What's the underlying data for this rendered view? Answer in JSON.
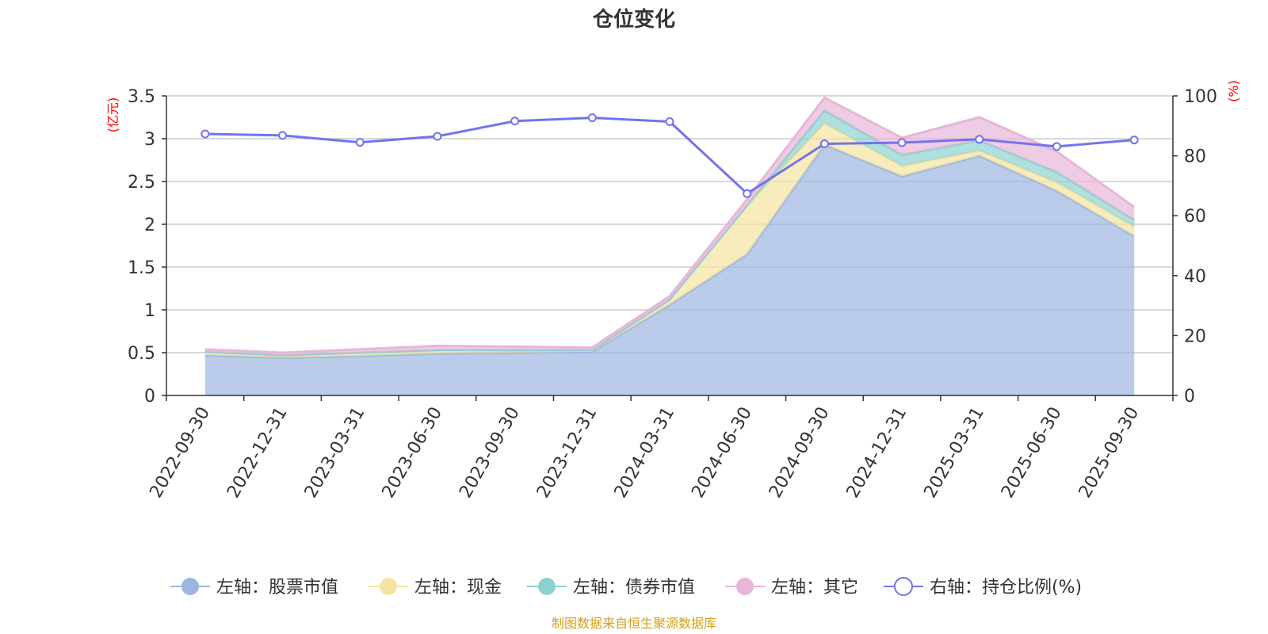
{
  "chart_data": {
    "type": "area",
    "title": "仓位变化",
    "categories": [
      "2022-09-30",
      "2022-12-31",
      "2023-03-31",
      "2023-06-30",
      "2023-09-30",
      "2023-12-31",
      "2024-03-31",
      "2024-06-30",
      "2024-09-30",
      "2024-12-31",
      "2025-03-31",
      "2025-06-30",
      "2025-09-30"
    ],
    "left_axis": {
      "unit": "(亿元)",
      "min": 0,
      "max": 3.5,
      "ticks": [
        "0",
        "0.5",
        "1",
        "1.5",
        "2",
        "2.5",
        "3",
        "3.5"
      ]
    },
    "right_axis": {
      "unit": "(%)",
      "min": 0,
      "max": 100,
      "ticks": [
        "0",
        "20",
        "40",
        "60",
        "80",
        "100"
      ]
    },
    "series": [
      {
        "name": "左轴：股票市值",
        "color": "#9db6e0",
        "axis": "left",
        "stack": true,
        "values": [
          0.47,
          0.44,
          0.46,
          0.49,
          0.5,
          0.51,
          1.06,
          1.65,
          2.93,
          2.56,
          2.8,
          2.39,
          1.86
        ]
      },
      {
        "name": "左轴：现金",
        "color": "#f5e3a0",
        "axis": "left",
        "stack": true,
        "values": [
          0.04,
          0.03,
          0.04,
          0.04,
          0.03,
          0.02,
          0.06,
          0.57,
          0.25,
          0.12,
          0.06,
          0.1,
          0.11
        ]
      },
      {
        "name": "左轴：债券市值",
        "color": "#8ed1d1",
        "axis": "left",
        "stack": true,
        "values": [
          0.0,
          0.0,
          0.0,
          0.0,
          0.0,
          0.0,
          0.0,
          0.0,
          0.15,
          0.13,
          0.12,
          0.12,
          0.08
        ]
      },
      {
        "name": "左轴：其它",
        "color": "#e7b6d9",
        "axis": "left",
        "stack": true,
        "values": [
          0.03,
          0.03,
          0.04,
          0.05,
          0.04,
          0.03,
          0.04,
          0.07,
          0.15,
          0.2,
          0.27,
          0.24,
          0.15
        ]
      },
      {
        "name": "右轴：持仓比例(%)",
        "color": "#7373ee",
        "axis": "right",
        "stack": false,
        "values": [
          87.3,
          86.8,
          84.5,
          86.5,
          91.6,
          92.7,
          91.4,
          67.4,
          84.0,
          84.4,
          85.5,
          83.1,
          85.3
        ]
      }
    ],
    "source": "制图数据来自恒生聚源数据库"
  }
}
